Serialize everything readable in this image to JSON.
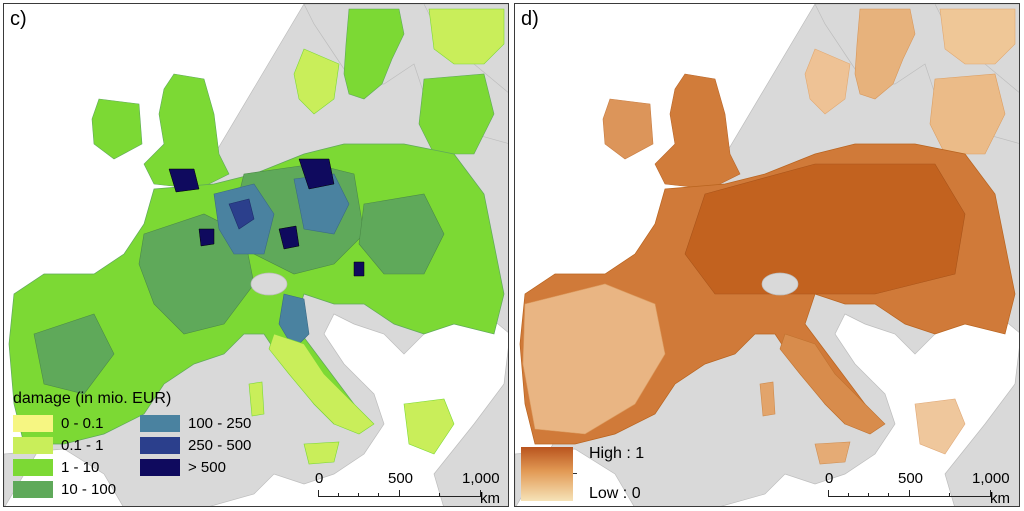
{
  "panels": {
    "c": {
      "label": "c)",
      "legend": {
        "title": "damage (in mio. EUR)",
        "classes": [
          {
            "label": "0 - 0.1",
            "color": "#f6f682"
          },
          {
            "label": "0.1 - 1",
            "color": "#c9ee5a"
          },
          {
            "label": "1 - 10",
            "color": "#7cd934"
          },
          {
            "label": "10 - 100",
            "color": "#5fa95a"
          },
          {
            "label": "100 - 250",
            "color": "#4a82a0"
          },
          {
            "label": "250 - 500",
            "color": "#2b3f8c"
          },
          {
            "label": "> 500",
            "color": "#0f0a5e"
          }
        ]
      },
      "scale": {
        "ticks": [
          "0",
          "500",
          "1,000"
        ],
        "unit": "km"
      }
    },
    "d": {
      "label": "d)",
      "legend": {
        "high": "High : 1",
        "low": "Low : 0",
        "colors": {
          "high": "#b9541e",
          "mid": "#e29a55",
          "low": "#f6e3b8"
        }
      },
      "scale": {
        "ticks": [
          "0",
          "500",
          "1,000"
        ],
        "unit": "km"
      }
    }
  },
  "colors": {
    "land_other": "#d9d9d9",
    "sea": "#ffffff",
    "border": "#a8a8a8"
  }
}
